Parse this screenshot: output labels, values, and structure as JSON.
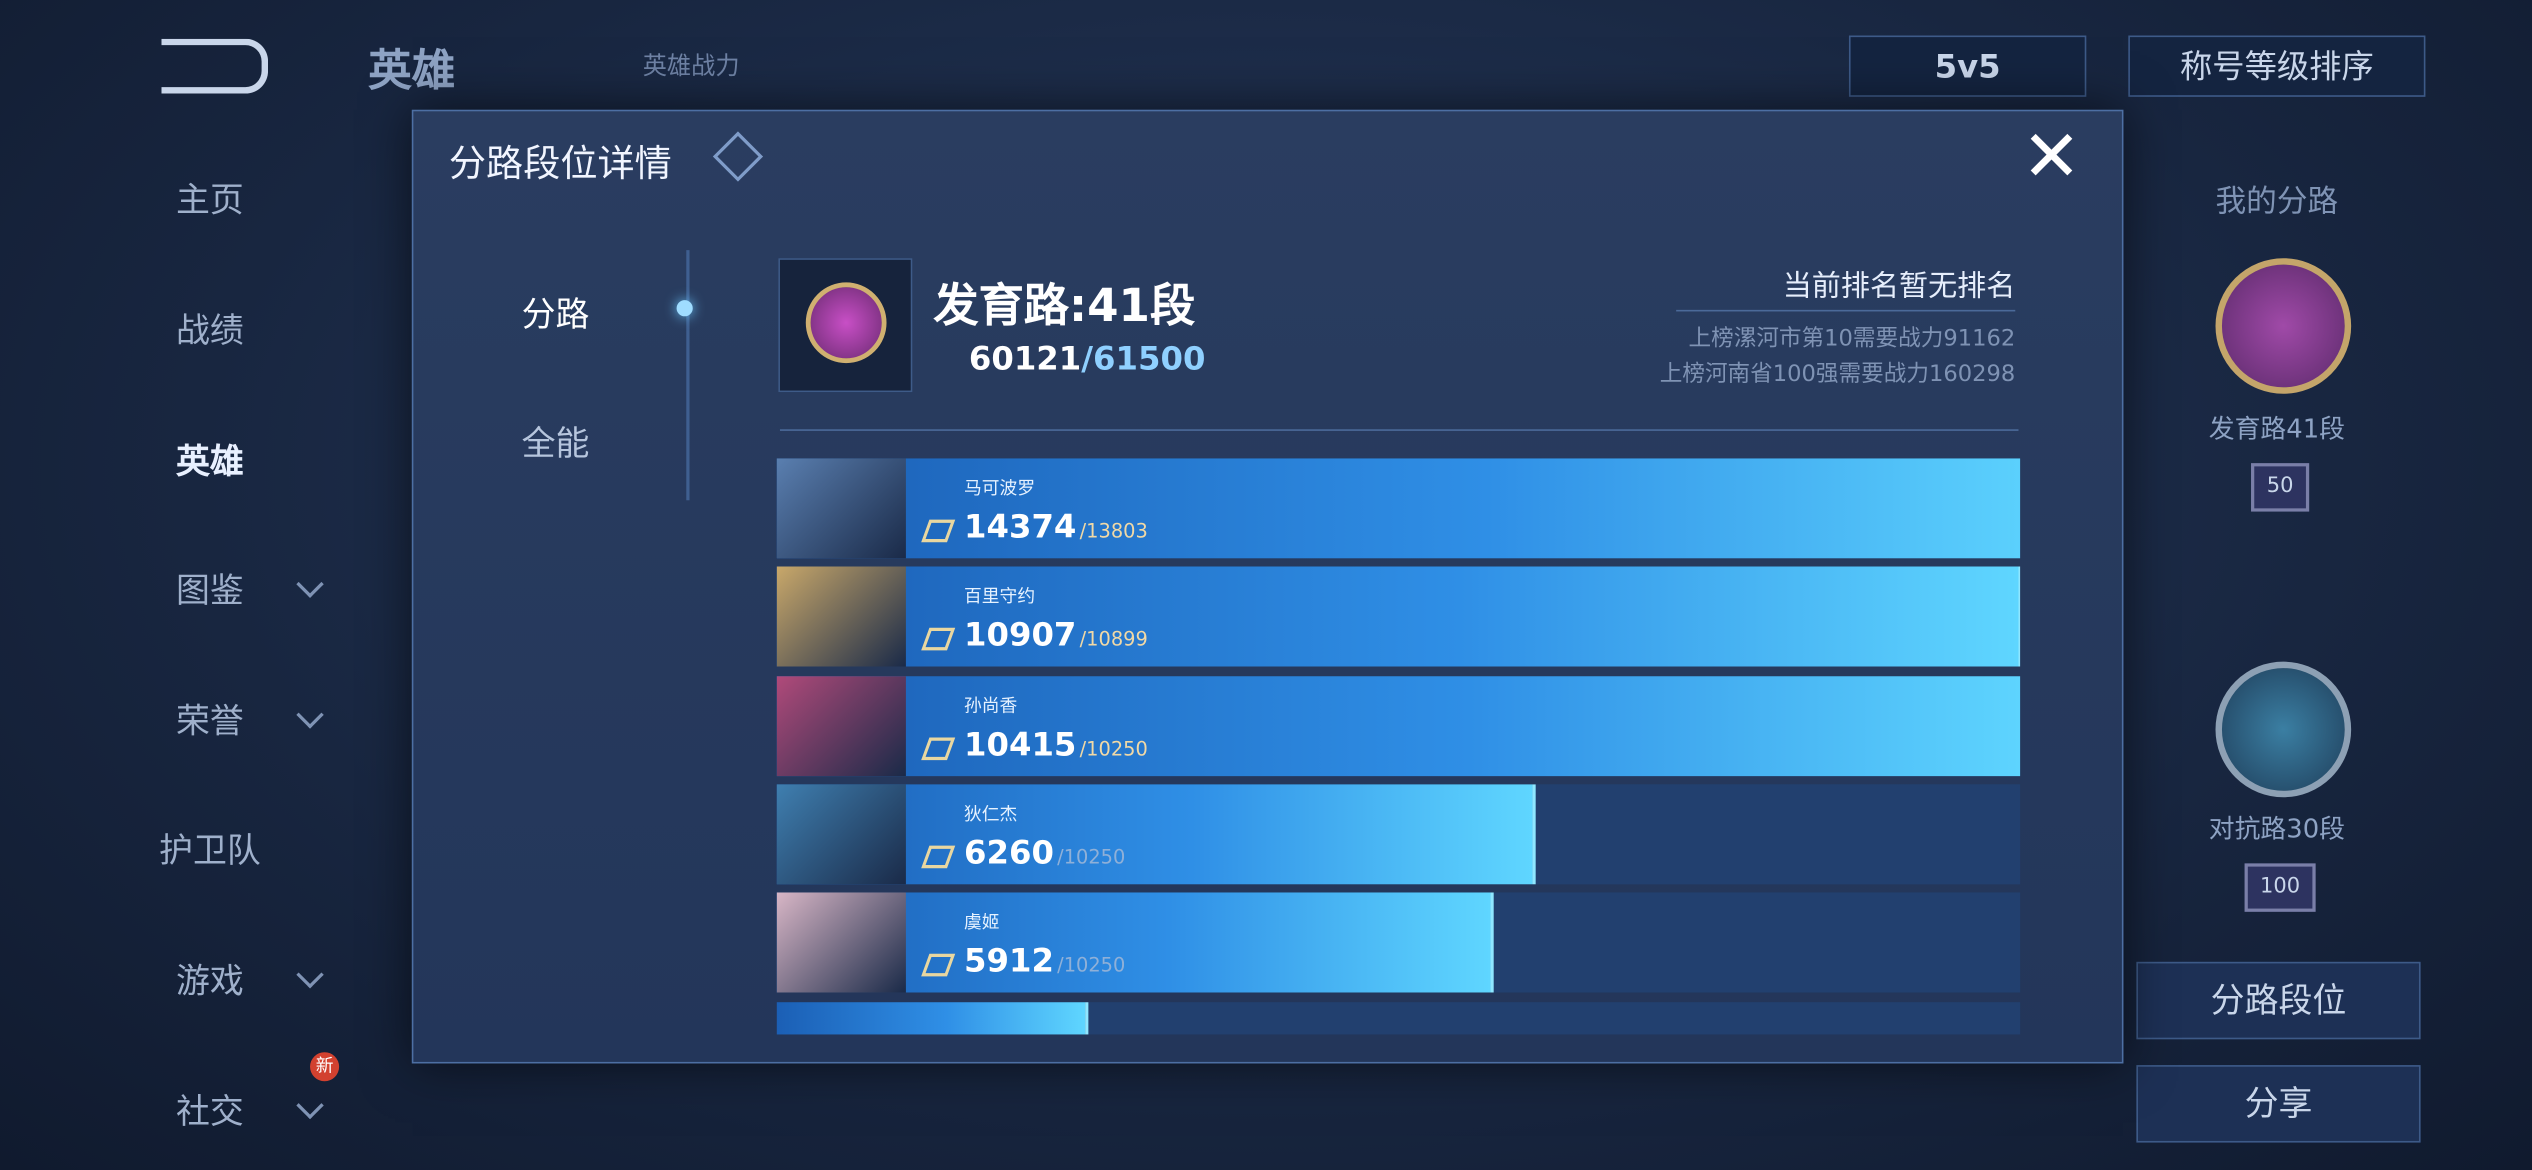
{
  "top_bar": {
    "title": "英雄",
    "power_tab": "英雄战力",
    "mode": "5v5",
    "sort": "称号等级排序"
  },
  "nav": {
    "items": [
      "主页",
      "战绩",
      "英雄",
      "图鉴",
      "荣誉",
      "护卫队",
      "游戏",
      "社交"
    ],
    "badge": "新"
  },
  "right_panel": {
    "title": "我的分路",
    "lane1": "发育路41段",
    "lane1_badge": "50",
    "lane2": "对抗路30段",
    "lane2_badge": "100",
    "button1": "分路段位",
    "button2": "分享"
  },
  "modal": {
    "title": "分路段位详情",
    "tabs": [
      "分路",
      "全能"
    ],
    "summary": {
      "lane": "发育路:41段",
      "score": 60121,
      "target": {
        "value": 61500,
        "label": "/61500"
      },
      "rank": "当前排名暂无排名",
      "req_city": "上榜漯河市第10需要战力91162",
      "req_province": "上榜河南省100强需要战力160298"
    },
    "heroes": [
      {
        "name": "马可波罗",
        "power": 14374,
        "target": {
          "value": 13803,
          "label": "/13803"
        }
      },
      {
        "name": "百里守约",
        "power": 10907,
        "target": {
          "value": 10899,
          "label": "/10899"
        }
      },
      {
        "name": "孙尚香",
        "power": 10415,
        "target": {
          "value": 10250,
          "label": "/10250"
        }
      },
      {
        "name": "狄仁杰",
        "power": 6260,
        "target": {
          "value": 10250,
          "label": "/10250"
        }
      },
      {
        "name": "虞姬",
        "power": 5912,
        "target": {
          "value": 10250,
          "label": "/10250"
        }
      }
    ]
  }
}
